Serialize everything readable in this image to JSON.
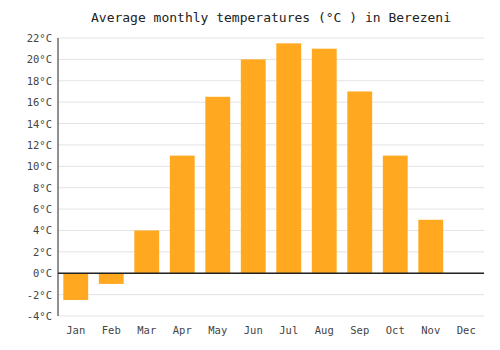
{
  "chart_data": {
    "type": "bar",
    "title": "Average monthly temperatures (°C ) in Berezeni",
    "categories": [
      "Jan",
      "Feb",
      "Mar",
      "Apr",
      "May",
      "Jun",
      "Jul",
      "Aug",
      "Sep",
      "Oct",
      "Nov",
      "Dec"
    ],
    "values": [
      -2.5,
      -1.0,
      4.0,
      11.0,
      16.5,
      20.0,
      21.5,
      21.0,
      17.0,
      11.0,
      5.0,
      0.0
    ],
    "color": "#FFA820",
    "ylim": [
      -4,
      22
    ],
    "yticks": [
      {
        "value": -4,
        "label": "-4°C"
      },
      {
        "value": -2,
        "label": "-2°C"
      },
      {
        "value": 0,
        "label": "0°C"
      },
      {
        "value": 2,
        "label": "2°C"
      },
      {
        "value": 4,
        "label": "4°C"
      },
      {
        "value": 6,
        "label": "6°C"
      },
      {
        "value": 8,
        "label": "8°C"
      },
      {
        "value": 10,
        "label": "10°C"
      },
      {
        "value": 12,
        "label": "12°C"
      },
      {
        "value": 14,
        "label": "14°C"
      },
      {
        "value": 16,
        "label": "16°C"
      },
      {
        "value": 18,
        "label": "18°C"
      },
      {
        "value": 20,
        "label": "20°C"
      },
      {
        "value": 22,
        "label": "22°C"
      }
    ],
    "grid": true
  }
}
